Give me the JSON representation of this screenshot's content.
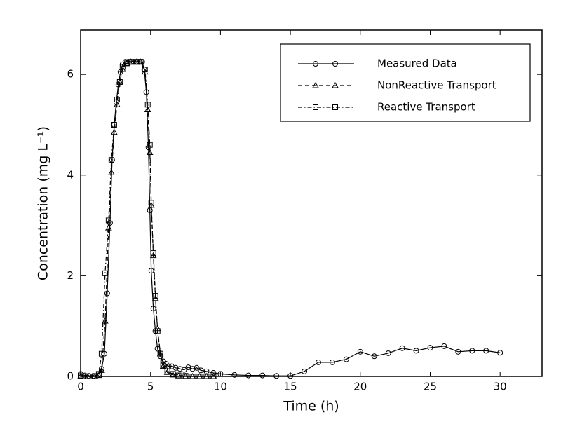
{
  "chart_data": {
    "type": "line",
    "xlabel": "Time (h)",
    "ylabel": "Concentration (mg L⁻¹)",
    "xlim": [
      0,
      33
    ],
    "ylim": [
      0,
      6.88
    ],
    "xticks": [
      0,
      5,
      10,
      15,
      20,
      25,
      30
    ],
    "yticks": [
      0,
      2,
      4,
      6
    ],
    "legend": "upper right",
    "series": [
      {
        "name": "Measured Data",
        "color": "#000000",
        "linestyle": "solid",
        "marker": "circle",
        "x": [
          0,
          0.3,
          0.6,
          0.9,
          1.2,
          1.5,
          1.7,
          1.9,
          2.1,
          2.25,
          2.4,
          2.55,
          2.7,
          2.85,
          3.0,
          3.2,
          3.4,
          3.6,
          3.8,
          4.0,
          4.2,
          4.4,
          4.55,
          4.7,
          4.85,
          4.95,
          5.05,
          5.2,
          5.35,
          5.5,
          5.7,
          5.9,
          6.1,
          6.3,
          6.5,
          6.8,
          7.1,
          7.4,
          7.7,
          8.0,
          8.3,
          8.6,
          9.0,
          9.5,
          10,
          11,
          12,
          13,
          14,
          15,
          16,
          17,
          18,
          19,
          20,
          21,
          22,
          23,
          24,
          25,
          26,
          27,
          28,
          29,
          30
        ],
        "values": [
          0.05,
          0.02,
          0.01,
          0.01,
          0.02,
          0.15,
          0.45,
          1.65,
          3.05,
          4.3,
          5.0,
          5.45,
          5.8,
          6.05,
          6.2,
          6.25,
          6.25,
          6.25,
          6.25,
          6.25,
          6.25,
          6.25,
          6.1,
          5.65,
          4.55,
          3.3,
          2.1,
          1.35,
          0.9,
          0.55,
          0.4,
          0.3,
          0.25,
          0.2,
          0.2,
          0.17,
          0.15,
          0.13,
          0.18,
          0.15,
          0.17,
          0.12,
          0.1,
          0.07,
          0.05,
          0.03,
          0.02,
          0.02,
          0.01,
          0.01,
          0.1,
          0.28,
          0.28,
          0.34,
          0.49,
          0.4,
          0.46,
          0.56,
          0.51,
          0.57,
          0.6,
          0.49,
          0.51,
          0.51,
          0.47
        ]
      },
      {
        "name": "NonReactive Transport",
        "color": "#000000",
        "linestyle": "dashed",
        "marker": "triangle",
        "x": [
          0,
          0.5,
          1.0,
          1.3,
          1.5,
          1.75,
          2.0,
          2.2,
          2.4,
          2.6,
          2.8,
          3.0,
          3.3,
          3.6,
          4.0,
          4.3,
          4.6,
          4.8,
          4.95,
          5.05,
          5.2,
          5.35,
          5.5,
          5.7,
          5.9,
          6.2,
          6.6,
          7,
          7.5,
          8,
          8.5,
          9,
          9.5
        ],
        "values": [
          0,
          0,
          0,
          0.02,
          0.12,
          1.1,
          2.95,
          4.05,
          4.85,
          5.4,
          5.85,
          6.1,
          6.22,
          6.25,
          6.25,
          6.25,
          6.05,
          5.3,
          4.45,
          3.4,
          2.4,
          1.55,
          0.95,
          0.45,
          0.2,
          0.08,
          0.03,
          0.01,
          0,
          0,
          0,
          0,
          0
        ]
      },
      {
        "name": "Reactive Transport",
        "color": "#000000",
        "linestyle": "dashdot",
        "marker": "square",
        "x": [
          0,
          0.5,
          1.0,
          1.3,
          1.5,
          1.75,
          2.0,
          2.2,
          2.4,
          2.6,
          2.8,
          3.0,
          3.3,
          3.6,
          4.0,
          4.3,
          4.6,
          4.8,
          4.95,
          5.05,
          5.2,
          5.35,
          5.5,
          5.7,
          5.9,
          6.2,
          6.6,
          7,
          7.5,
          8,
          8.5,
          9,
          9.5
        ],
        "values": [
          0.02,
          0,
          0,
          0.05,
          0.45,
          2.05,
          3.1,
          4.3,
          5.0,
          5.5,
          5.85,
          6.15,
          6.22,
          6.25,
          6.25,
          6.25,
          6.1,
          5.4,
          4.6,
          3.45,
          2.45,
          1.6,
          0.9,
          0.45,
          0.22,
          0.1,
          0.05,
          0.02,
          0.01,
          0,
          0,
          0,
          0
        ]
      }
    ]
  }
}
